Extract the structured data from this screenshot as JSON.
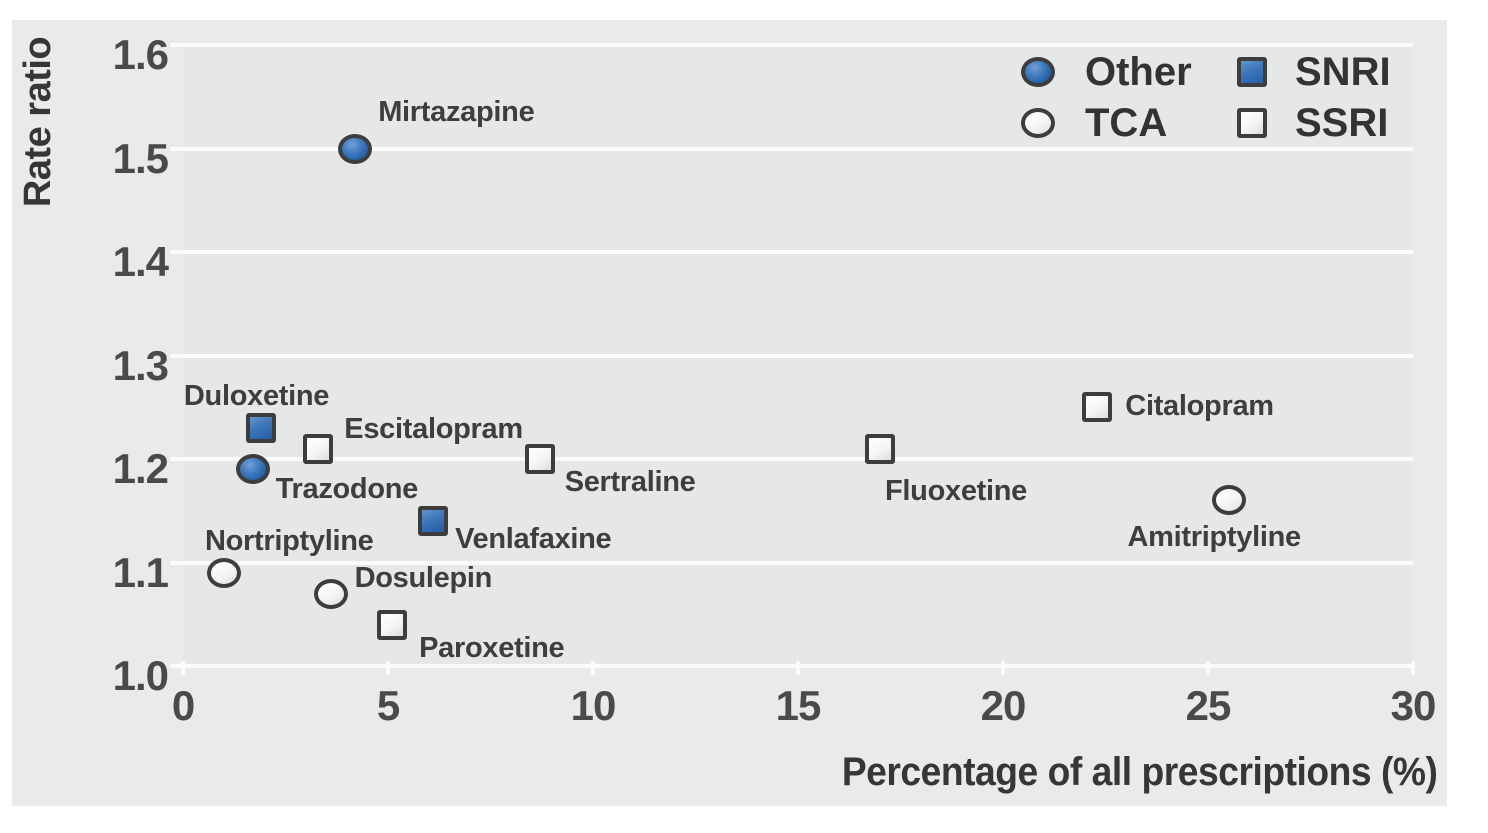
{
  "colors": {
    "figure_background": "#eaeaea",
    "plot_background": "#e6e7e7",
    "gridline": "#fbfbfb",
    "marker_blue": "#2f6db4",
    "marker_outline": "#3d3d3d",
    "text": "#3e3e3e"
  },
  "legend": {
    "position": "top-right",
    "items": [
      {
        "label": "Other",
        "marker": "circle",
        "fill": "filled"
      },
      {
        "label": "TCA",
        "marker": "circle",
        "fill": "open"
      },
      {
        "label": "SNRI",
        "marker": "square",
        "fill": "filled"
      },
      {
        "label": "SSRI",
        "marker": "square",
        "fill": "open"
      }
    ]
  },
  "chart_data": {
    "type": "scatter",
    "title": "",
    "xlabel": "Percentage of all prescriptions (%)",
    "ylabel": "Rate ratio",
    "xlim": [
      0,
      30
    ],
    "ylim": [
      1.0,
      1.6
    ],
    "x_ticks": [
      0,
      5,
      10,
      15,
      20,
      25,
      30
    ],
    "y_ticks": [
      1.0,
      1.1,
      1.2,
      1.3,
      1.4,
      1.5,
      1.6
    ],
    "grid": "horizontal-white-lines",
    "legend_position": "top-right-inside",
    "series": [
      {
        "name": "Other",
        "marker": "circle",
        "fill": "filled",
        "points": [
          {
            "label": "Mirtazapine",
            "x": 4.2,
            "y": 1.5,
            "label_dx": 23,
            "label_dy": -52
          },
          {
            "label": "Trazodone",
            "x": 1.7,
            "y": 1.19,
            "label_dx": 23,
            "label_dy": 5
          }
        ]
      },
      {
        "name": "TCA",
        "marker": "circle",
        "fill": "open",
        "points": [
          {
            "label": "Nortriptyline",
            "x": 1.0,
            "y": 1.09,
            "label_dx": -19,
            "label_dy": -47
          },
          {
            "label": "Dosulepin",
            "x": 3.6,
            "y": 1.07,
            "label_dx": 24,
            "label_dy": -31
          },
          {
            "label": "Amitriptyline",
            "x": 25.5,
            "y": 1.16,
            "label_dx": -101,
            "label_dy": 22
          }
        ]
      },
      {
        "name": "SNRI",
        "marker": "square",
        "fill": "filled",
        "points": [
          {
            "label": "Duloxetine",
            "x": 1.9,
            "y": 1.23,
            "label_dx": -77,
            "label_dy": -47
          },
          {
            "label": "Venlafaxine",
            "x": 6.1,
            "y": 1.14,
            "label_dx": 22,
            "label_dy": 3
          }
        ]
      },
      {
        "name": "SSRI",
        "marker": "square",
        "fill": "open",
        "points": [
          {
            "label": "Escitalopram",
            "x": 3.3,
            "y": 1.21,
            "label_dx": 26,
            "label_dy": -35
          },
          {
            "label": "Sertraline",
            "x": 8.7,
            "y": 1.2,
            "label_dx": 25,
            "label_dy": 8
          },
          {
            "label": "Paroxetine",
            "x": 5.1,
            "y": 1.04,
            "label_dx": 27,
            "label_dy": 8
          },
          {
            "label": "Fluoxetine",
            "x": 17.0,
            "y": 1.21,
            "label_dx": 5,
            "label_dy": 27
          },
          {
            "label": "Citalopram",
            "x": 22.3,
            "y": 1.25,
            "label_dx": 28,
            "label_dy": -16
          }
        ]
      }
    ]
  }
}
